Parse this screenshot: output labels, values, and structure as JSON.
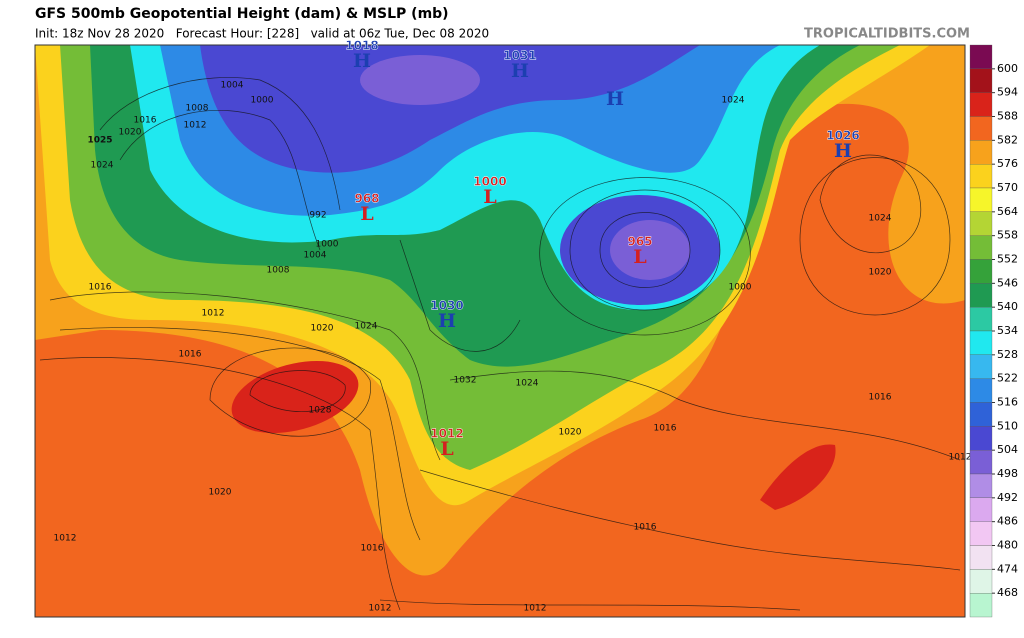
{
  "header": {
    "title": "GFS 500mb Geopotential Height (dam) & MSLP (mb)",
    "subtitle": "Init: 18z Nov 28 2020   Forecast Hour: [228]   valid at 06z Tue, Dec 08 2020",
    "source": "TROPICALTIDBITS.COM"
  },
  "colorbar": {
    "ticks": [
      600,
      594,
      588,
      582,
      576,
      570,
      564,
      558,
      552,
      546,
      540,
      534,
      528,
      522,
      516,
      510,
      504,
      498,
      492,
      486,
      480,
      474,
      468
    ],
    "colors": [
      "#7a0a52",
      "#a3121a",
      "#d9231a",
      "#f2661f",
      "#f7a21c",
      "#fbd21d",
      "#f6f52a",
      "#b4d534",
      "#74bd37",
      "#35a23a",
      "#1f9a52",
      "#2cc9a3",
      "#20e8ef",
      "#37b8ef",
      "#2d8ae6",
      "#2f62d8",
      "#4a48d2",
      "#7a5fd6",
      "#b08de6",
      "#dba9ef",
      "#f2c7f3",
      "#f2e2f2",
      "#dff5e7",
      "#b8f5d0"
    ]
  },
  "centers": [
    {
      "kind": "H",
      "value": 1018
    },
    {
      "kind": "H",
      "value": 1031
    },
    {
      "kind": "H"
    },
    {
      "kind": "H",
      "value": 1026
    },
    {
      "kind": "L",
      "value": 968
    },
    {
      "kind": "L",
      "value": 1000
    },
    {
      "kind": "L",
      "value": 965
    },
    {
      "kind": "H",
      "value": 1030
    },
    {
      "kind": "L",
      "value": 1012
    }
  ],
  "isobar_labels": [
    1025,
    1004,
    1000,
    1008,
    1012,
    1016,
    1020,
    1024,
    992,
    1000,
    1004,
    1008,
    1016,
    1012,
    1020,
    1024,
    1016,
    1028,
    1032,
    1024,
    1020,
    1016,
    1020,
    1024,
    1016,
    1012,
    1016,
    1016,
    1020,
    1012,
    1012,
    1012,
    1024,
    1000
  ]
}
